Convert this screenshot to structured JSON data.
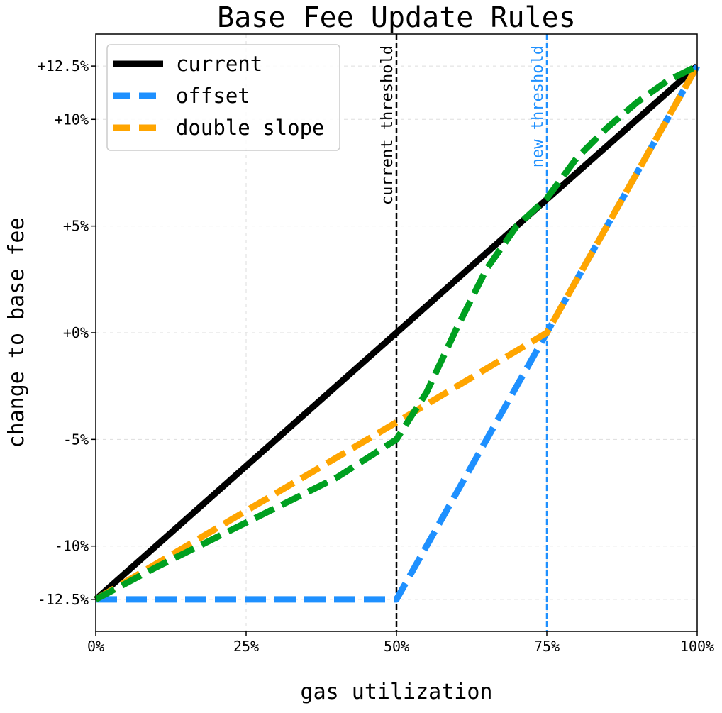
{
  "chart_data": {
    "type": "line",
    "title": "Base Fee Update Rules",
    "xlabel": "gas utilization",
    "ylabel": "change to base fee",
    "xlim": [
      0,
      100
    ],
    "ylim": [
      -14,
      14
    ],
    "xticks": [
      {
        "value": 0,
        "label": "0%"
      },
      {
        "value": 25,
        "label": "25%"
      },
      {
        "value": 50,
        "label": "50%"
      },
      {
        "value": 75,
        "label": "75%"
      },
      {
        "value": 100,
        "label": "100%"
      }
    ],
    "yticks": [
      {
        "value": -12.5,
        "label": "-12.5%"
      },
      {
        "value": -10,
        "label": "-10%"
      },
      {
        "value": -5,
        "label": "-5%"
      },
      {
        "value": 0,
        "label": "+0%"
      },
      {
        "value": 5,
        "label": "+5%"
      },
      {
        "value": 10,
        "label": "+10%"
      },
      {
        "value": 12.5,
        "label": "+12.5%"
      }
    ],
    "grid": true,
    "legend_position": "top-left",
    "series": [
      {
        "name": "current",
        "color": "#000000",
        "dashed": false,
        "x": [
          0,
          50,
          100
        ],
        "y": [
          -12.5,
          0,
          12.5
        ]
      },
      {
        "name": "offset",
        "color": "#1e90ff",
        "dashed": true,
        "x": [
          0,
          50,
          75,
          100
        ],
        "y": [
          -12.5,
          -12.5,
          0,
          12.5
        ]
      },
      {
        "name": "double slope",
        "color": "#ffa500",
        "dashed": true,
        "x": [
          0,
          50,
          75,
          100
        ],
        "y": [
          -12.5,
          -4.2,
          0,
          12.5
        ]
      },
      {
        "name": "",
        "color": "#00a020",
        "dashed": true,
        "in_legend": false,
        "x": [
          0,
          10,
          20,
          30,
          40,
          50,
          55,
          60,
          65,
          70,
          75,
          80,
          85,
          90,
          95,
          100
        ],
        "y": [
          -12.5,
          -11.0,
          -9.6,
          -8.2,
          -6.8,
          -5.0,
          -2.8,
          0.2,
          3.0,
          5.0,
          6.3,
          8.2,
          9.6,
          10.8,
          11.8,
          12.5
        ]
      }
    ],
    "annotations": [
      {
        "x": 50,
        "label": "current threshold",
        "color": "#000000"
      },
      {
        "x": 75,
        "label": "new threshold",
        "color": "#1e90ff"
      }
    ]
  }
}
